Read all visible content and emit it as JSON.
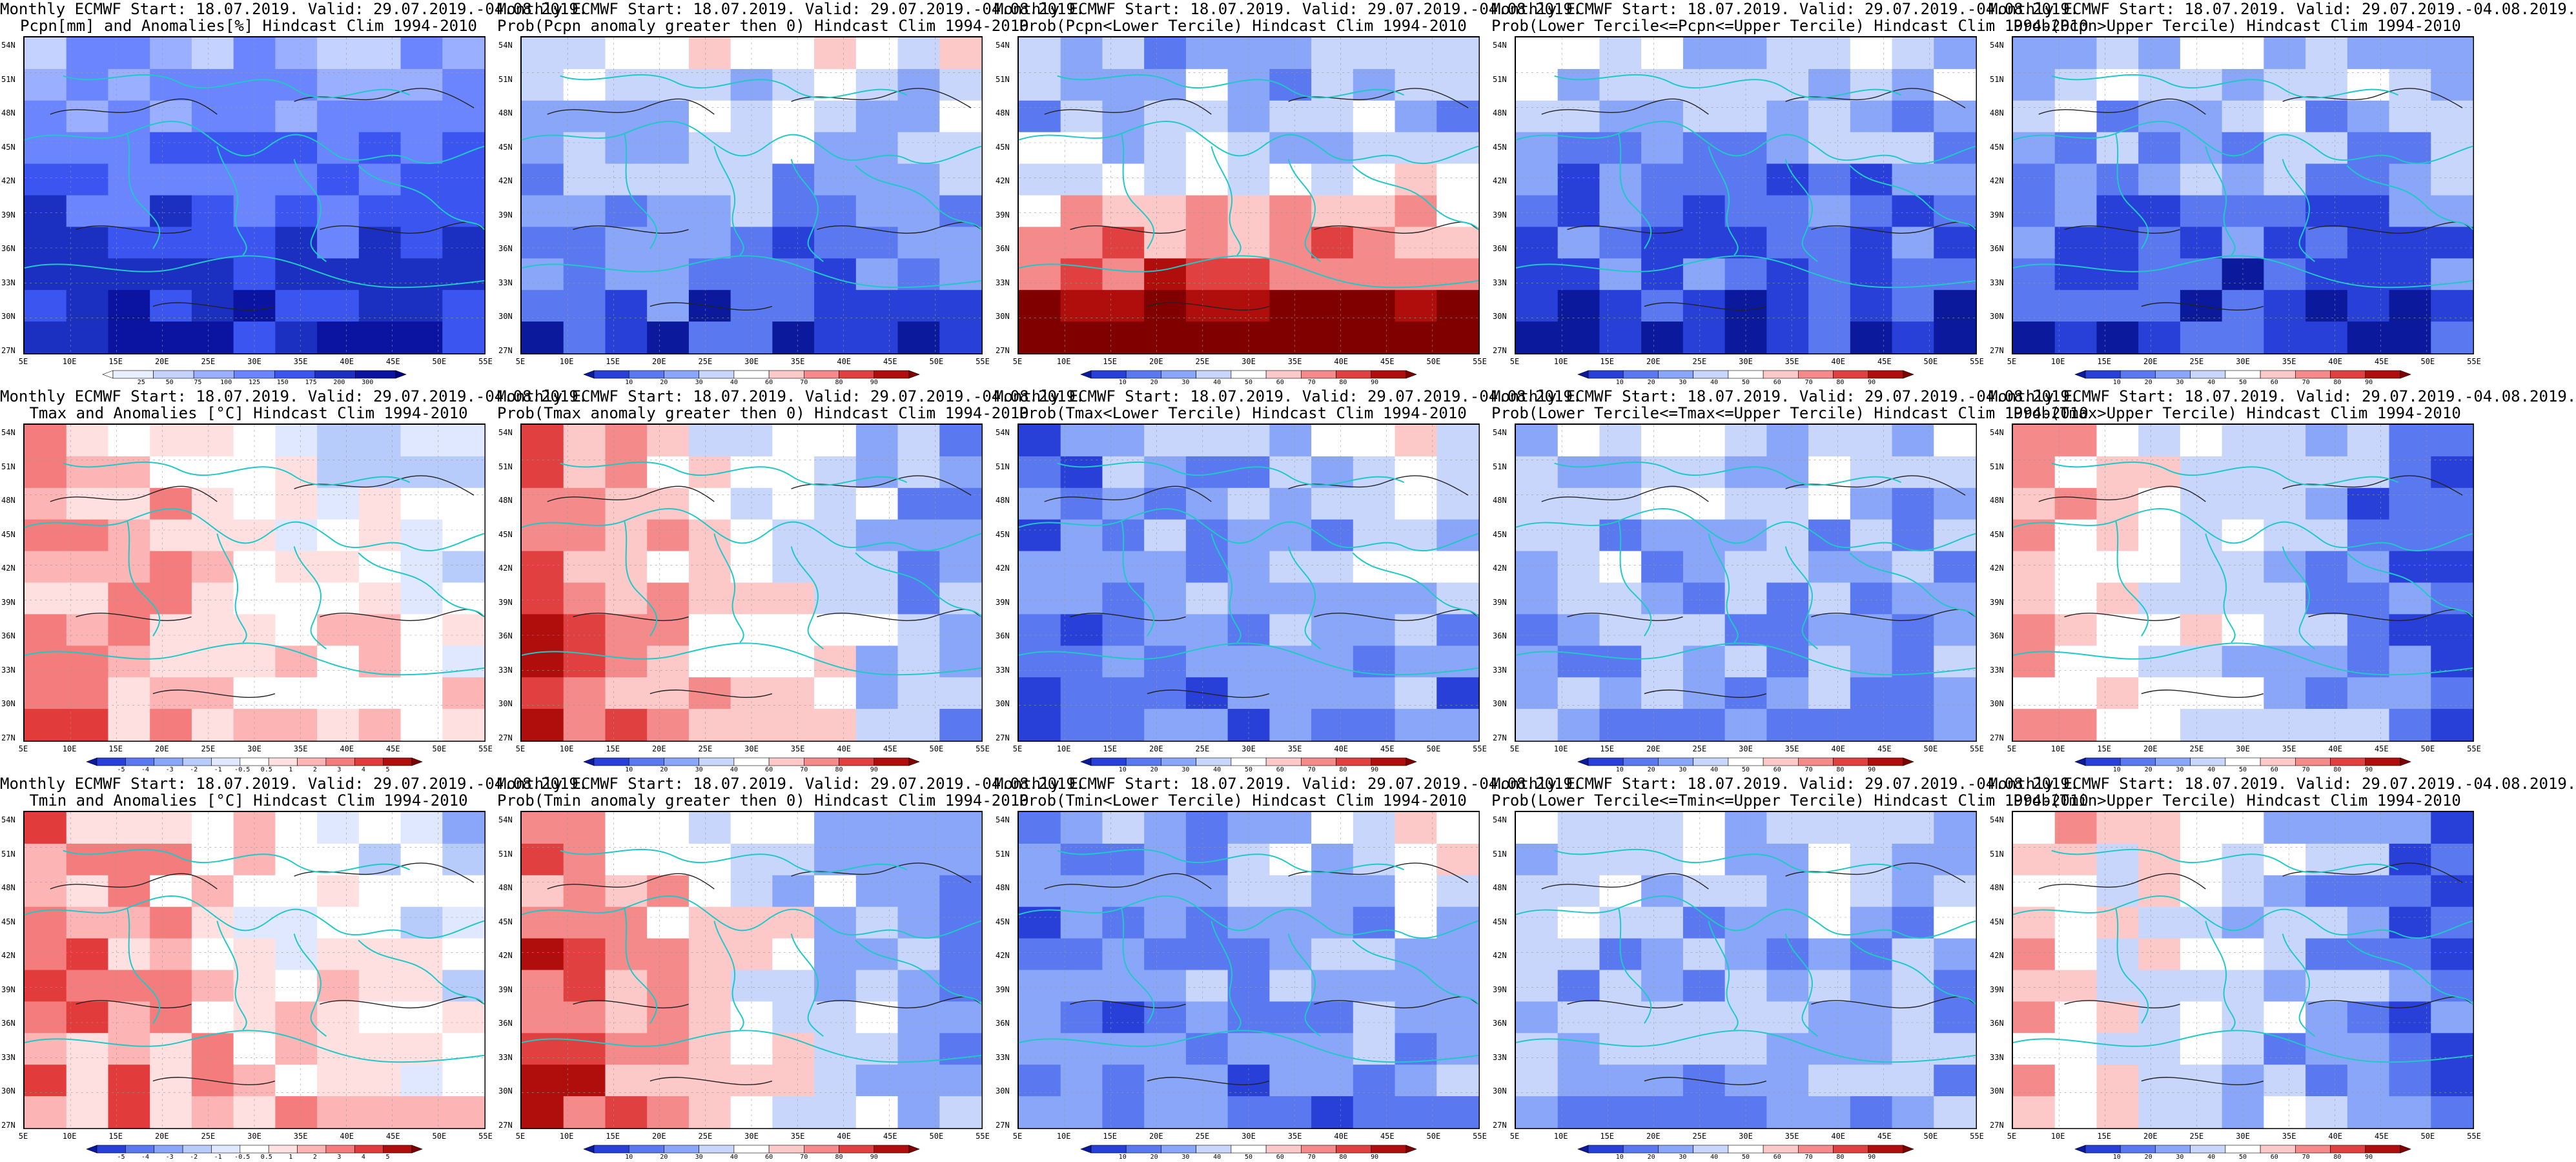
{
  "panels": [
    {
      "title1": "Monthly ECMWF Start: 18.07.2019. Valid: 29.07.2019.-04.08.2019.",
      "title2": "Pcpn[mm] and Anomalies[%] Hindcast Clim 1994-2010",
      "field": "pcpn-anomaly",
      "palette": "anom-pcpn",
      "colorbar_labels": [
        "25",
        "50",
        "75",
        "100",
        "125",
        "150",
        "175",
        "200",
        "300"
      ]
    },
    {
      "title1": "Monthly ECMWF Start: 18.07.2019. Valid: 29.07.2019.-04.08.2019.",
      "title2": "Prob(Pcpn anomaly greater then 0) Hindcast Clim 1994-2010",
      "field": "pcpn-prob-gt0",
      "palette": "prob-wide",
      "colorbar_labels": [
        "10",
        "20",
        "30",
        "40",
        "60",
        "70",
        "80",
        "90"
      ]
    },
    {
      "title1": "Monthly ECMWF Start: 18.07.2019. Valid: 29.07.2019.-04.08.2019.",
      "title2": "Prob(Pcpn<Lower Tercile) Hindcast Clim 1994-2010",
      "field": "pcpn-lower",
      "palette": "prob-narrow",
      "colorbar_labels": [
        "10",
        "20",
        "30",
        "40",
        "50",
        "60",
        "70",
        "80",
        "90"
      ]
    },
    {
      "title1": "Monthly ECMWF Start: 18.07.2019. Valid: 29.07.2019.-04.08.2019.",
      "title2": "Prob(Lower Tercile<=Pcpn<=Upper Tercile) Hindcast Clim 1994-2010",
      "field": "pcpn-middle",
      "palette": "prob-narrow",
      "colorbar_labels": [
        "10",
        "20",
        "30",
        "40",
        "50",
        "60",
        "70",
        "80",
        "90"
      ]
    },
    {
      "title1": "Monthly ECMWF Start: 18.07.2019. Valid: 29.07.2019.-04.08.2019.",
      "title2": "Prob(Pcpn>Upper Tercile) Hindcast Clim 1994-2010",
      "field": "pcpn-upper",
      "palette": "prob-narrow",
      "colorbar_labels": [
        "10",
        "20",
        "30",
        "40",
        "50",
        "60",
        "70",
        "80",
        "90"
      ]
    },
    {
      "title1": "Monthly ECMWF Start: 18.07.2019. Valid: 29.07.2019.-04.08.2019.",
      "title2": "Tmax and Anomalies [°C] Hindcast Clim 1994-2010",
      "field": "tmax-anomaly",
      "palette": "anom-temp",
      "colorbar_labels": [
        "-5",
        "-4",
        "-3",
        "-2",
        "-1",
        "-0.5",
        "0.5",
        "1",
        "2",
        "3",
        "4",
        "5"
      ]
    },
    {
      "title1": "Monthly ECMWF Start: 18.07.2019. Valid: 29.07.2019.-04.08.2019.",
      "title2": "Prob(Tmax anomaly greater then 0) Hindcast Clim 1994-2010",
      "field": "tmax-prob-gt0",
      "palette": "prob-wide",
      "colorbar_labels": [
        "10",
        "20",
        "30",
        "40",
        "60",
        "70",
        "80",
        "90"
      ]
    },
    {
      "title1": "Monthly ECMWF Start: 18.07.2019. Valid: 29.07.2019.-04.08.2019.",
      "title2": "Prob(Tmax<Lower Tercile) Hindcast Clim 1994-2010",
      "field": "tmax-lower",
      "palette": "prob-narrow",
      "colorbar_labels": [
        "10",
        "20",
        "30",
        "40",
        "50",
        "60",
        "70",
        "80",
        "90"
      ]
    },
    {
      "title1": "Monthly ECMWF Start: 18.07.2019. Valid: 29.07.2019.-04.08.2019.",
      "title2": "Prob(Lower Tercile<=Tmax<=Upper Tercile) Hindcast Clim 1994-2010",
      "field": "tmax-middle",
      "palette": "prob-narrow",
      "colorbar_labels": [
        "10",
        "20",
        "30",
        "40",
        "50",
        "60",
        "70",
        "80",
        "90"
      ]
    },
    {
      "title1": "Monthly ECMWF Start: 18.07.2019. Valid: 29.07.2019.-04.08.2019.",
      "title2": "Prob(Tmax>Upper Tercile) Hindcast Clim 1994-2010",
      "field": "tmax-upper",
      "palette": "prob-narrow",
      "colorbar_labels": [
        "10",
        "20",
        "30",
        "40",
        "50",
        "60",
        "70",
        "80",
        "90"
      ]
    },
    {
      "title1": "Monthly ECMWF Start: 18.07.2019. Valid: 29.07.2019.-04.08.2019.",
      "title2": "Tmin and Anomalies [°C] Hindcast Clim 1994-2010",
      "field": "tmin-anomaly",
      "palette": "anom-temp",
      "colorbar_labels": [
        "-5",
        "-4",
        "-3",
        "-2",
        "-1",
        "-0.5",
        "0.5",
        "1",
        "2",
        "3",
        "4",
        "5"
      ]
    },
    {
      "title1": "Monthly ECMWF Start: 18.07.2019. Valid: 29.07.2019.-04.08.2019.",
      "title2": "Prob(Tmin anomaly greater then 0) Hindcast Clim 1994-2010",
      "field": "tmin-prob-gt0",
      "palette": "prob-wide",
      "colorbar_labels": [
        "10",
        "20",
        "30",
        "40",
        "60",
        "70",
        "80",
        "90"
      ]
    },
    {
      "title1": "Monthly ECMWF Start: 18.07.2019. Valid: 29.07.2019.-04.08.2019.",
      "title2": "Prob(Tmin<Lower Tercile) Hindcast Clim 1994-2010",
      "field": "tmin-lower",
      "palette": "prob-narrow",
      "colorbar_labels": [
        "10",
        "20",
        "30",
        "40",
        "50",
        "60",
        "70",
        "80",
        "90"
      ]
    },
    {
      "title1": "Monthly ECMWF Start: 18.07.2019. Valid: 29.07.2019.-04.08.2019.",
      "title2": "Prob(Lower Tercile<=Tmin<=Upper Tercile) Hindcast Clim 1994-2010",
      "field": "tmin-middle",
      "palette": "prob-narrow",
      "colorbar_labels": [
        "10",
        "20",
        "30",
        "40",
        "50",
        "60",
        "70",
        "80",
        "90"
      ]
    },
    {
      "title1": "Monthly ECMWF Start: 18.07.2019. Valid: 29.07.2019.-04.08.2019.",
      "title2": "Prob(Tmin>Upper Tercile) Hindcast Clim 1994-2010",
      "field": "tmin-upper",
      "palette": "prob-narrow",
      "colorbar_labels": [
        "10",
        "20",
        "30",
        "40",
        "50",
        "60",
        "70",
        "80",
        "90"
      ]
    }
  ],
  "lat_labels": [
    "54N",
    "51N",
    "48N",
    "45N",
    "42N",
    "39N",
    "36N",
    "33N",
    "30N",
    "27N"
  ],
  "lon_labels": [
    "5E",
    "10E",
    "15E",
    "20E",
    "25E",
    "30E",
    "35E",
    "40E",
    "45E",
    "50E",
    "55E"
  ],
  "palettes": {
    "anom-pcpn": [
      "#ffffff",
      "#e8f0ff",
      "#c4d2ff",
      "#9aafff",
      "#6b85ff",
      "#3b56f0",
      "#1b2fc0",
      "#0a14a0",
      "#000080"
    ],
    "anom-temp": [
      "#0b1a9c",
      "#2840d8",
      "#5a78f0",
      "#8aa6f8",
      "#b8ccfc",
      "#e0e8ff",
      "#ffffff",
      "#ffe0e0",
      "#fcb4b4",
      "#f47c7c",
      "#e23b3b",
      "#b00d0d",
      "#7a0000"
    ],
    "prob-wide": [
      "#0b1a9c",
      "#2840d8",
      "#5a78f0",
      "#8aa6f8",
      "#c8d6fc",
      "#ffffff",
      "#fcc8c8",
      "#f48a8a",
      "#e04040",
      "#b00d0d",
      "#800000"
    ],
    "prob-narrow": [
      "#0b1a9c",
      "#2840d8",
      "#5a78f0",
      "#8aa6f8",
      "#c8d6fc",
      "#ffffff",
      "#fcc8c8",
      "#f48a8a",
      "#e04040",
      "#b00d0d",
      "#800000"
    ]
  },
  "colors": {
    "coastline": "#20c8c8",
    "contour": "#222222",
    "frame": "#000000"
  }
}
